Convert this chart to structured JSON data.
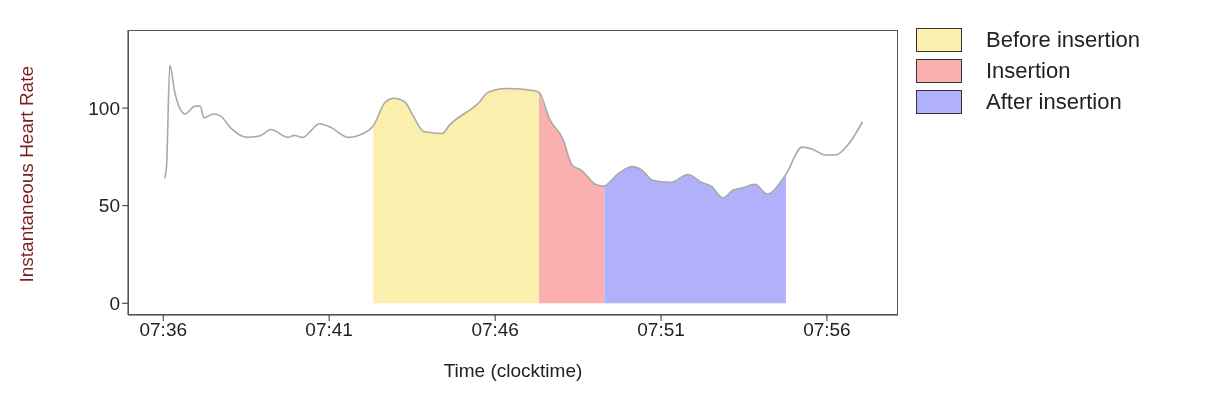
{
  "chart_data": {
    "type": "area",
    "xlabel": "Time (clocktime)",
    "ylabel": "Instantaneous Heart Rate",
    "x": [
      7.6008,
      7.6017,
      7.6033,
      7.6058,
      7.611,
      7.616,
      7.6185,
      7.6205,
      7.6253,
      7.6287,
      7.6337,
      7.6422,
      7.649,
      7.654,
      7.6625,
      7.6658,
      7.67,
      7.6785,
      7.6843,
      7.6928,
      7.698,
      7.7055,
      7.7115,
      7.7157,
      7.7215,
      7.725,
      7.7308,
      7.7402,
      7.7435,
      7.7587,
      7.763,
      7.7722,
      7.7857,
      7.7887,
      7.7942,
      7.8008,
      7.8052,
      7.8102,
      7.817,
      7.8215,
      7.828,
      7.8355,
      7.8407,
      7.8457,
      7.855,
      7.8635,
      7.8702,
      7.8752,
      7.8812,
      7.8862,
      7.8905,
      7.8972,
      7.9032,
      7.9127,
      7.9208,
      7.9258,
      7.9327,
      7.9377,
      7.9445,
      7.9512
    ],
    "series": [
      {
        "name": "Before insertion",
        "color": "#fbefad",
        "values": [
          null,
          null,
          null,
          null,
          null,
          null,
          null,
          null,
          null,
          null,
          null,
          null,
          null,
          null,
          null,
          null,
          null,
          null,
          null,
          null,
          null,
          91,
          103,
          105,
          103,
          97,
          88,
          87,
          91,
          103,
          108,
          110,
          109,
          108,
          null,
          null,
          null,
          null,
          null,
          null,
          null,
          null,
          null,
          null,
          null,
          null,
          null,
          null,
          null,
          null,
          null,
          null,
          null,
          null,
          null,
          null,
          null,
          null,
          null,
          null
        ]
      },
      {
        "name": "Insertion",
        "color": "#fbafaf",
        "values": [
          null,
          null,
          null,
          null,
          null,
          null,
          null,
          null,
          null,
          null,
          null,
          null,
          null,
          null,
          null,
          null,
          null,
          null,
          null,
          null,
          null,
          null,
          null,
          null,
          null,
          null,
          null,
          null,
          null,
          null,
          null,
          null,
          null,
          108,
          94,
          84,
          71,
          68,
          61,
          60,
          null,
          null,
          null,
          null,
          null,
          null,
          null,
          null,
          null,
          null,
          null,
          null,
          null,
          null,
          null,
          null,
          null,
          null,
          null,
          null
        ]
      },
      {
        "name": "After insertion",
        "color": "#b1b1fb",
        "values": [
          null,
          null,
          null,
          null,
          null,
          null,
          null,
          null,
          null,
          null,
          null,
          null,
          null,
          null,
          null,
          null,
          null,
          null,
          null,
          null,
          null,
          null,
          null,
          null,
          null,
          null,
          null,
          null,
          null,
          null,
          null,
          null,
          null,
          null,
          null,
          null,
          null,
          null,
          null,
          60,
          66,
          70,
          68,
          63,
          62,
          66,
          62,
          60,
          54,
          58,
          59,
          61,
          56,
          66,
          null,
          null,
          null,
          null,
          null,
          null
        ]
      },
      {
        "type": "line",
        "color": "#a9a9a9",
        "values": [
          64,
          71,
          122,
          108,
          97,
          101,
          101,
          95,
          97,
          96,
          90,
          85,
          86,
          89,
          85,
          86,
          85,
          92,
          90,
          85,
          86,
          91,
          103,
          105,
          103,
          97,
          88,
          87,
          91,
          103,
          108,
          110,
          109,
          108,
          94,
          84,
          71,
          68,
          61,
          60,
          66,
          70,
          68,
          63,
          62,
          66,
          62,
          60,
          54,
          58,
          59,
          61,
          56,
          66,
          80,
          79,
          76,
          76,
          82,
          93
        ]
      }
    ],
    "xlim": [
      7.5823,
      7.969
    ],
    "xticks": [
      {
        "value": 7.6,
        "label": "07:36"
      },
      {
        "value": 7.6833,
        "label": "07:41"
      },
      {
        "value": 7.7667,
        "label": "07:46"
      },
      {
        "value": 7.85,
        "label": "07:51"
      },
      {
        "value": 7.9333,
        "label": "07:56"
      }
    ],
    "ylim": [
      -6,
      140
    ],
    "yticks": [
      0,
      50,
      100
    ],
    "grid": false,
    "legend": "top right"
  }
}
